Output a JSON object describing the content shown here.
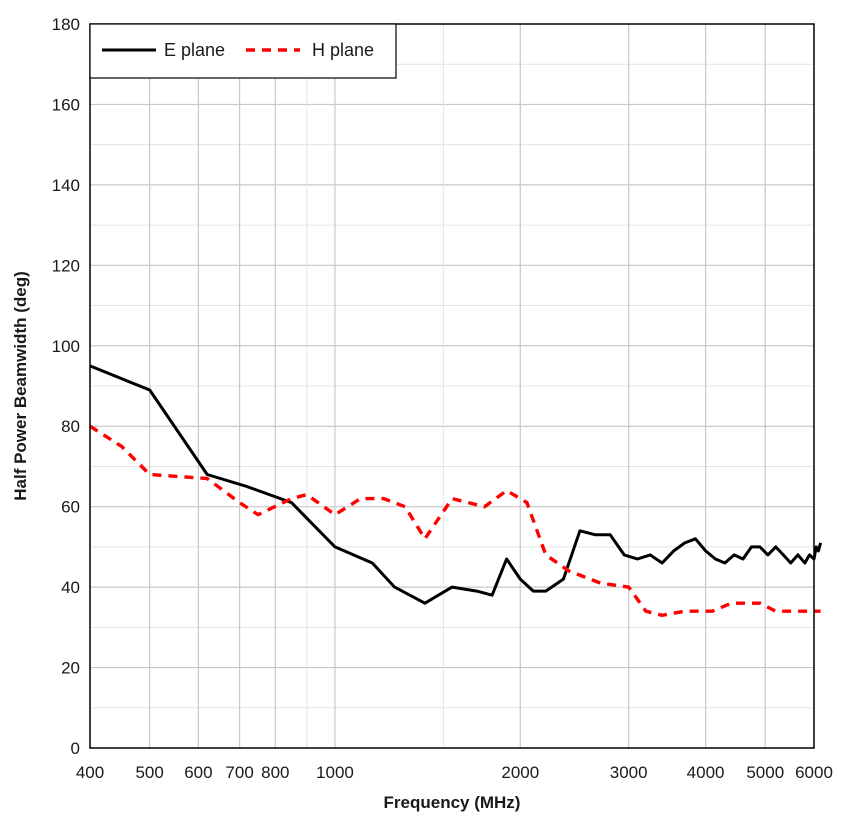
{
  "chart_data": {
    "type": "line",
    "title": "",
    "xlabel": "Frequency (MHz)",
    "ylabel": "Half Power Beamwidth (deg)",
    "xscale": "log",
    "xlim": [
      400,
      6000
    ],
    "ylim": [
      0,
      180
    ],
    "grid": true,
    "legend_position": "top-left",
    "x_ticks": [
      400,
      500,
      600,
      700,
      800,
      1000,
      2000,
      3000,
      4000,
      5000,
      6000
    ],
    "x_tick_labels": [
      "400",
      "500",
      "600",
      "700",
      "800",
      "1000",
      "2000",
      "3000",
      "4000",
      "5000",
      "6000"
    ],
    "y_ticks": [
      0,
      20,
      40,
      60,
      80,
      100,
      120,
      140,
      160,
      180
    ],
    "y_tick_labels": [
      "0",
      "20",
      "40",
      "60",
      "80",
      "100",
      "120",
      "140",
      "160",
      "180"
    ],
    "series": [
      {
        "name": "E plane",
        "color": "#000000",
        "style": "solid",
        "points": [
          [
            400,
            95
          ],
          [
            500,
            89
          ],
          [
            620,
            68
          ],
          [
            720,
            65
          ],
          [
            850,
            61
          ],
          [
            1000,
            50
          ],
          [
            1150,
            46
          ],
          [
            1250,
            40
          ],
          [
            1400,
            36
          ],
          [
            1550,
            40
          ],
          [
            1700,
            39
          ],
          [
            1800,
            38
          ],
          [
            1900,
            47
          ],
          [
            2000,
            42
          ],
          [
            2100,
            39
          ],
          [
            2200,
            39
          ],
          [
            2350,
            42
          ],
          [
            2500,
            54
          ],
          [
            2650,
            53
          ],
          [
            2800,
            53
          ],
          [
            2950,
            48
          ],
          [
            3100,
            47
          ],
          [
            3250,
            48
          ],
          [
            3400,
            46
          ],
          [
            3550,
            49
          ],
          [
            3700,
            51
          ],
          [
            3850,
            52
          ],
          [
            4000,
            49
          ],
          [
            4150,
            47
          ],
          [
            4300,
            46
          ],
          [
            4450,
            48
          ],
          [
            4600,
            47
          ],
          [
            4750,
            50
          ],
          [
            4900,
            50
          ],
          [
            5050,
            48
          ],
          [
            5200,
            50
          ],
          [
            5350,
            48
          ],
          [
            5500,
            46
          ],
          [
            5650,
            48
          ],
          [
            5800,
            46
          ],
          [
            5900,
            48
          ],
          [
            6000,
            47
          ],
          [
            6050,
            50
          ],
          [
            6100,
            49
          ],
          [
            6150,
            51
          ]
        ]
      },
      {
        "name": "H plane",
        "color": "#ff0000",
        "style": "dashed",
        "points": [
          [
            400,
            80
          ],
          [
            450,
            75
          ],
          [
            500,
            68
          ],
          [
            620,
            67
          ],
          [
            700,
            61
          ],
          [
            750,
            58
          ],
          [
            850,
            62
          ],
          [
            900,
            63
          ],
          [
            1000,
            58
          ],
          [
            1100,
            62
          ],
          [
            1200,
            62
          ],
          [
            1300,
            60
          ],
          [
            1400,
            52
          ],
          [
            1550,
            62
          ],
          [
            1750,
            60
          ],
          [
            1900,
            64
          ],
          [
            2050,
            61
          ],
          [
            2200,
            48
          ],
          [
            2400,
            44
          ],
          [
            2700,
            41
          ],
          [
            3000,
            40
          ],
          [
            3200,
            34
          ],
          [
            3400,
            33
          ],
          [
            3700,
            34
          ],
          [
            4100,
            34
          ],
          [
            4400,
            36
          ],
          [
            4900,
            36
          ],
          [
            5200,
            34
          ],
          [
            5600,
            34
          ],
          [
            6150,
            34
          ]
        ]
      }
    ]
  }
}
